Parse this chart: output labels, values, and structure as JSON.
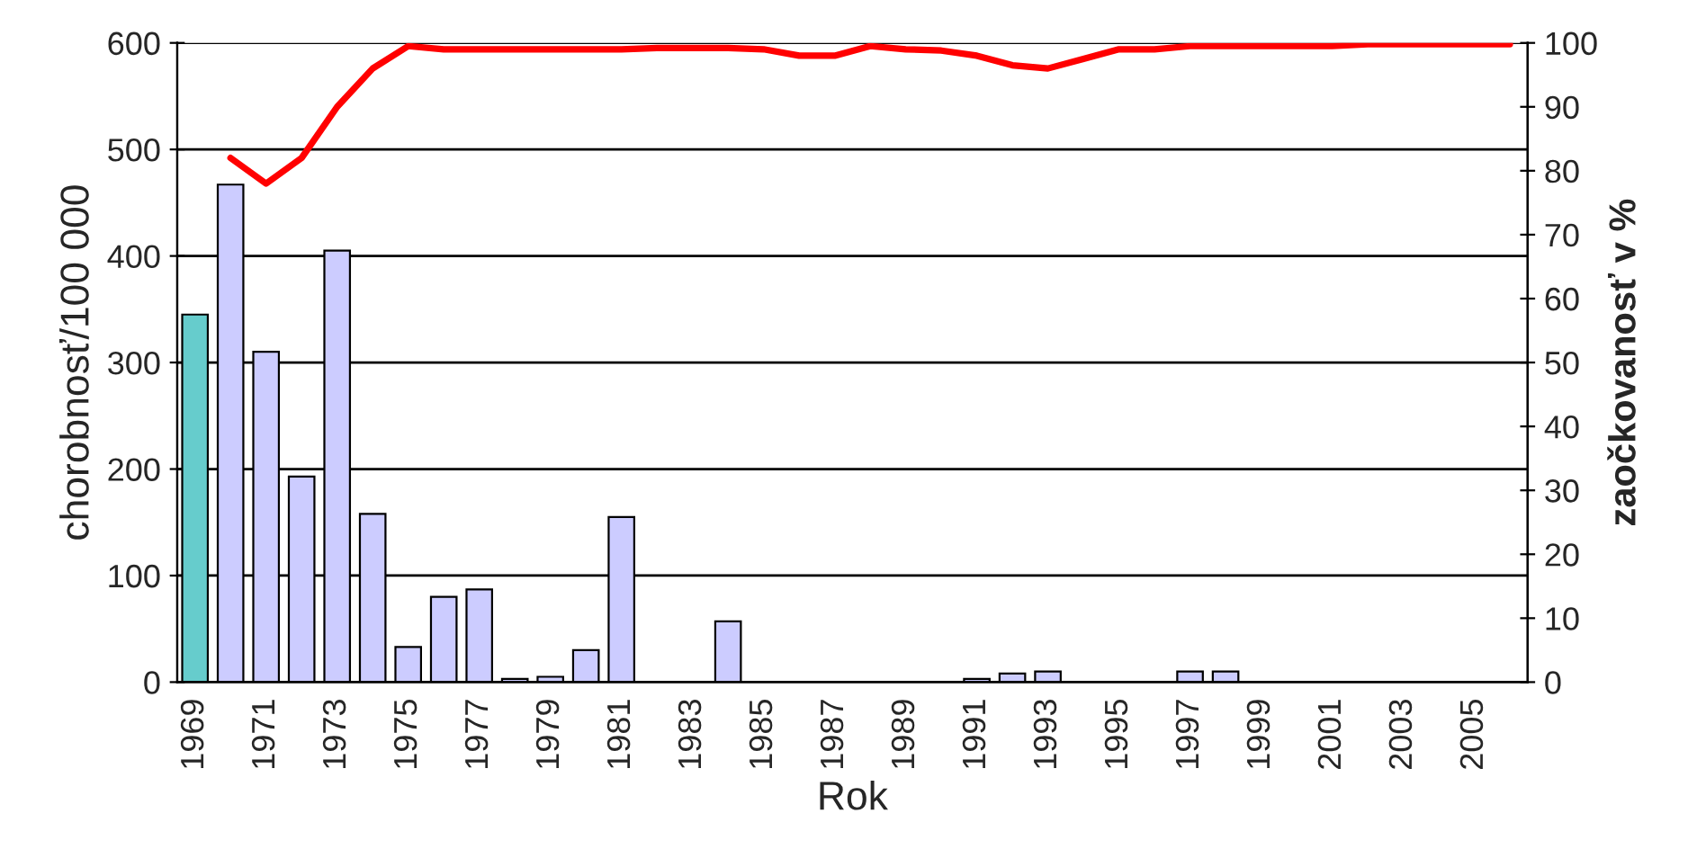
{
  "chart_data": {
    "type": "bar",
    "xlabel": "Rok",
    "ylabel": "chorobnosť/100 000",
    "y2label": "zaočkovanosť v %",
    "categories": [
      "1969",
      null,
      "1971",
      null,
      "1973",
      null,
      "1975",
      null,
      "1977",
      null,
      "1979",
      null,
      "1981",
      null,
      "1983",
      null,
      "1985",
      null,
      "1987",
      null,
      "1989",
      null,
      "1991",
      null,
      "1993",
      null,
      "1995",
      null,
      "1997",
      null,
      "1999",
      null,
      "2001",
      null,
      "2003",
      null,
      "2005",
      null
    ],
    "series": [
      {
        "colors": [
          "#66cccc",
          "#ccccff",
          "#ccccff",
          "#ccccff",
          "#ccccff",
          "#ccccff",
          "#ccccff",
          "#ccccff",
          "#ccccff",
          "#ccccff",
          "#ccccff",
          "#ccccff",
          "#ccccff",
          "#ccccff",
          "#ccccff",
          "#ccccff",
          "#ccccff",
          "#ccccff",
          "#ccccff",
          "#ccccff",
          "#ccccff",
          "#ccccff",
          "#ccccff",
          "#ccccff",
          "#ccccff",
          "#ccccff",
          "#ccccff",
          "#ccccff",
          "#ccccff",
          "#ccccff",
          "#ccccff",
          "#ccccff",
          "#ccccff",
          "#ccccff",
          "#ccccff",
          "#ccccff",
          "#ccccff",
          "#ccccff"
        ],
        "values": [
          345,
          467,
          310,
          193,
          405,
          158,
          33,
          80,
          87,
          3,
          5,
          30,
          155,
          null,
          null,
          57,
          null,
          null,
          null,
          null,
          null,
          null,
          3,
          8,
          10,
          null,
          null,
          null,
          10,
          10,
          null,
          null,
          null,
          null,
          null,
          null,
          null,
          null
        ]
      },
      {
        "type": "line",
        "axis": "y2",
        "color": "#ff0000",
        "values": [
          null,
          82,
          78,
          82,
          90,
          96,
          99.5,
          99,
          99,
          99,
          99,
          99,
          99,
          99.2,
          99.2,
          99.2,
          99,
          98,
          98,
          99.5,
          99,
          98.8,
          98,
          96.5,
          96,
          97.5,
          99,
          99,
          99.5,
          99.5,
          99.5,
          99.5,
          99.5,
          99.8,
          99.8,
          99.8,
          99.8,
          99.8
        ]
      }
    ],
    "ylim": [
      0,
      600
    ],
    "yticks": [
      0,
      100,
      200,
      300,
      400,
      500,
      600
    ],
    "y2lim": [
      0,
      100
    ],
    "y2ticks": [
      0,
      10,
      20,
      30,
      40,
      50,
      60,
      70,
      80,
      90,
      100
    ],
    "grid": "y",
    "legend": false
  }
}
